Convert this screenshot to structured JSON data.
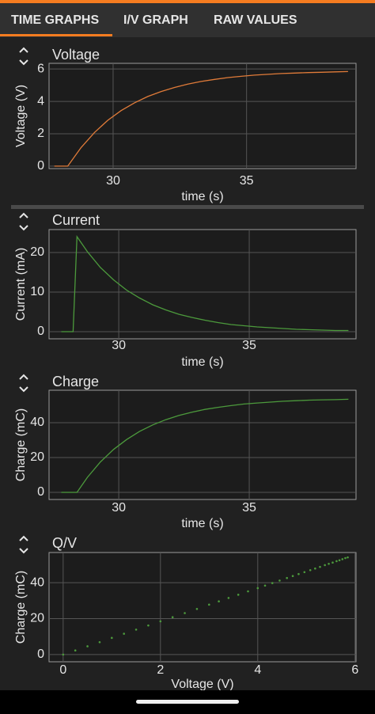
{
  "tabs": [
    "TIME GRAPHS",
    "I/V GRAPH",
    "RAW VALUES"
  ],
  "chart_data": [
    {
      "type": "line",
      "title": "Voltage",
      "x_label": "time (s)",
      "y_label": "Voltage (V)",
      "color": "#e07b39",
      "x": [
        27.8,
        28.3,
        28.8,
        29.3,
        29.8,
        30.3,
        30.8,
        31.3,
        31.8,
        32.3,
        32.8,
        33.3,
        33.8,
        34.3,
        34.8,
        35.3,
        35.8,
        36.3,
        36.8,
        37.3,
        37.8,
        38.3,
        38.8
      ],
      "values": [
        0,
        0,
        1.15,
        2.08,
        2.83,
        3.43,
        3.91,
        4.3,
        4.61,
        4.86,
        5.07,
        5.23,
        5.36,
        5.47,
        5.55,
        5.62,
        5.67,
        5.72,
        5.75,
        5.78,
        5.8,
        5.82,
        5.84
      ],
      "xlim": [
        27.6,
        39.1
      ],
      "ylim": [
        -0.15,
        6.35
      ],
      "xticks": [
        30,
        35
      ],
      "yticks": [
        0,
        2,
        4,
        6
      ],
      "grid": true
    },
    {
      "type": "line",
      "title": "Current",
      "x_label": "time (s)",
      "y_label": "Current (mA)",
      "color": "#4c9a3c",
      "x": [
        27.8,
        28.25,
        28.4,
        28.8,
        29.3,
        29.8,
        30.3,
        30.8,
        31.3,
        31.8,
        32.3,
        32.8,
        33.3,
        33.8,
        34.3,
        34.8,
        35.3,
        35.8,
        36.3,
        36.8,
        37.3,
        37.8,
        38.3,
        38.8
      ],
      "values": [
        0,
        0,
        24,
        20.2,
        16.2,
        13.1,
        10.5,
        8.5,
        6.8,
        5.5,
        4.4,
        3.6,
        2.9,
        2.3,
        1.8,
        1.5,
        1.2,
        1.0,
        0.8,
        0.6,
        0.5,
        0.4,
        0.3,
        0.3
      ],
      "xlim": [
        27.33,
        39.09
      ],
      "ylim": [
        -1.8,
        25.8
      ],
      "xticks": [
        30,
        35
      ],
      "yticks": [
        0,
        10,
        20
      ],
      "grid": true
    },
    {
      "type": "line",
      "title": "Charge",
      "x_label": "time (s)",
      "y_label": "Charge (mC)",
      "color": "#4c9a3c",
      "x": [
        27.8,
        28.4,
        28.8,
        29.3,
        29.8,
        30.3,
        30.8,
        31.3,
        31.8,
        32.3,
        32.8,
        33.3,
        33.8,
        34.3,
        34.8,
        35.3,
        35.8,
        36.3,
        36.8,
        37.3,
        37.8,
        38.3,
        38.8
      ],
      "values": [
        0,
        0,
        8.6,
        17.5,
        24.6,
        30.3,
        35.0,
        38.7,
        41.7,
        44.1,
        46.0,
        47.6,
        48.8,
        49.8,
        50.7,
        51.3,
        51.8,
        52.3,
        52.6,
        52.9,
        53.1,
        53.2,
        53.4
      ],
      "xlim": [
        27.33,
        39.09
      ],
      "ylim": [
        -4.1,
        58.6
      ],
      "xticks": [
        30,
        35
      ],
      "yticks": [
        0,
        20,
        40
      ],
      "grid": true
    },
    {
      "type": "scatter",
      "title": "Q/V",
      "x_label": "Voltage (V)",
      "y_label": "Charge (mC)",
      "color": "#4c9a3c",
      "x": [
        0,
        0.25,
        0.5,
        0.75,
        1.0,
        1.25,
        1.5,
        1.75,
        2.0,
        2.25,
        2.5,
        2.75,
        3.0,
        3.2,
        3.4,
        3.6,
        3.8,
        4.0,
        4.15,
        4.3,
        4.45,
        4.6,
        4.72,
        4.84,
        4.96,
        5.08,
        5.18,
        5.28,
        5.38,
        5.46,
        5.54,
        5.62,
        5.68,
        5.74,
        5.8,
        5.85
      ],
      "values": [
        0,
        2.3,
        4.6,
        6.9,
        9.3,
        11.6,
        13.9,
        16.2,
        18.5,
        20.8,
        23.1,
        25.4,
        27.8,
        29.6,
        31.5,
        33.3,
        35.2,
        37.0,
        38.4,
        39.8,
        41.2,
        42.6,
        43.7,
        44.8,
        45.9,
        47.0,
        47.9,
        48.8,
        49.8,
        50.5,
        51.2,
        52.0,
        52.5,
        53.1,
        53.7,
        54.1
      ],
      "xlim": [
        -0.29,
        6.02
      ],
      "ylim": [
        -4.0,
        56.8
      ],
      "xticks": [
        0,
        2,
        4,
        6
      ],
      "yticks": [
        0,
        20,
        40
      ],
      "grid": true
    }
  ]
}
